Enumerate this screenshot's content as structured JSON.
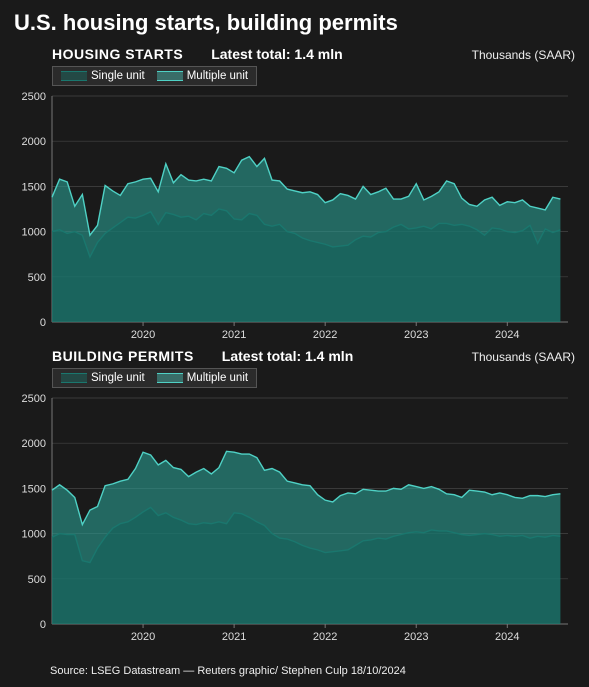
{
  "title": "U.S. housing starts, building permits",
  "source": "Source: LSEG Datastream — Reuters graphic/ Stephen Culp 18/10/2024",
  "background_color": "#1a1a1a",
  "text_color": "#ffffff",
  "grid_color": "#444444",
  "panels": [
    {
      "name": "HOUSING STARTS",
      "latest_label": "Latest total: 1.4 mln",
      "unit_label": "Thousands (SAAR)",
      "ylim": [
        0,
        2500
      ],
      "ytick_step": 500,
      "x_years": [
        2020,
        2021,
        2022,
        2023,
        2024
      ],
      "x_range_months": [
        0,
        68
      ],
      "series": [
        {
          "label": "Single unit",
          "color_line": "#1a776e",
          "color_fill": "#1a776ecc",
          "values": [
            1000,
            1020,
            980,
            1000,
            960,
            720,
            880,
            980,
            1040,
            1100,
            1160,
            1150,
            1180,
            1220,
            1080,
            1210,
            1190,
            1160,
            1170,
            1130,
            1200,
            1180,
            1250,
            1230,
            1140,
            1130,
            1200,
            1180,
            1080,
            1060,
            1080,
            1000,
            980,
            930,
            900,
            880,
            860,
            830,
            840,
            850,
            910,
            950,
            940,
            990,
            1000,
            1050,
            1080,
            1030,
            1040,
            1060,
            1030,
            1090,
            1090,
            1070,
            1080,
            1060,
            1020,
            960,
            1040,
            1030,
            1000,
            990,
            1010,
            1070,
            870,
            1030,
            990,
            1020
          ]
        },
        {
          "label": "Multiple unit",
          "color_line": "#4fd1c5",
          "color_fill": "#2a9c9199",
          "values": [
            1380,
            1580,
            1550,
            1280,
            1410,
            960,
            1070,
            1510,
            1450,
            1400,
            1530,
            1550,
            1580,
            1590,
            1440,
            1750,
            1540,
            1630,
            1570,
            1560,
            1580,
            1560,
            1720,
            1700,
            1650,
            1790,
            1830,
            1720,
            1810,
            1570,
            1560,
            1470,
            1450,
            1430,
            1440,
            1410,
            1320,
            1350,
            1420,
            1400,
            1360,
            1500,
            1410,
            1440,
            1480,
            1360,
            1360,
            1390,
            1530,
            1350,
            1390,
            1440,
            1560,
            1530,
            1370,
            1300,
            1280,
            1350,
            1380,
            1290,
            1330,
            1320,
            1350,
            1280,
            1260,
            1240,
            1380,
            1360
          ]
        }
      ]
    },
    {
      "name": "BUILDING PERMITS",
      "latest_label": "Latest total: 1.4 mln",
      "unit_label": "Thousands (SAAR)",
      "ylim": [
        0,
        2500
      ],
      "ytick_step": 500,
      "x_years": [
        2020,
        2021,
        2022,
        2023,
        2024
      ],
      "x_range_months": [
        0,
        68
      ],
      "series": [
        {
          "label": "Single unit",
          "color_line": "#1a776e",
          "color_fill": "#1a776ecc",
          "values": [
            960,
            1000,
            990,
            990,
            700,
            680,
            840,
            960,
            1060,
            1110,
            1130,
            1180,
            1240,
            1290,
            1200,
            1230,
            1180,
            1150,
            1110,
            1100,
            1120,
            1110,
            1130,
            1110,
            1230,
            1220,
            1180,
            1130,
            1090,
            1000,
            950,
            940,
            910,
            870,
            840,
            820,
            790,
            800,
            810,
            820,
            870,
            920,
            930,
            950,
            940,
            970,
            990,
            1010,
            1020,
            1010,
            1040,
            1030,
            1030,
            1010,
            990,
            980,
            990,
            1000,
            990,
            970,
            980,
            970,
            980,
            950,
            970,
            960,
            980,
            970
          ]
        },
        {
          "label": "Multiple unit",
          "color_line": "#4fd1c5",
          "color_fill": "#2a9c9199",
          "values": [
            1480,
            1540,
            1480,
            1400,
            1100,
            1260,
            1300,
            1530,
            1550,
            1580,
            1600,
            1720,
            1900,
            1870,
            1760,
            1810,
            1730,
            1710,
            1630,
            1680,
            1720,
            1660,
            1730,
            1910,
            1900,
            1880,
            1880,
            1840,
            1700,
            1720,
            1680,
            1580,
            1560,
            1540,
            1530,
            1430,
            1370,
            1350,
            1420,
            1450,
            1440,
            1490,
            1480,
            1470,
            1470,
            1500,
            1490,
            1540,
            1520,
            1500,
            1520,
            1490,
            1440,
            1430,
            1400,
            1480,
            1470,
            1460,
            1430,
            1450,
            1430,
            1400,
            1390,
            1420,
            1420,
            1410,
            1430,
            1440
          ]
        }
      ]
    }
  ]
}
